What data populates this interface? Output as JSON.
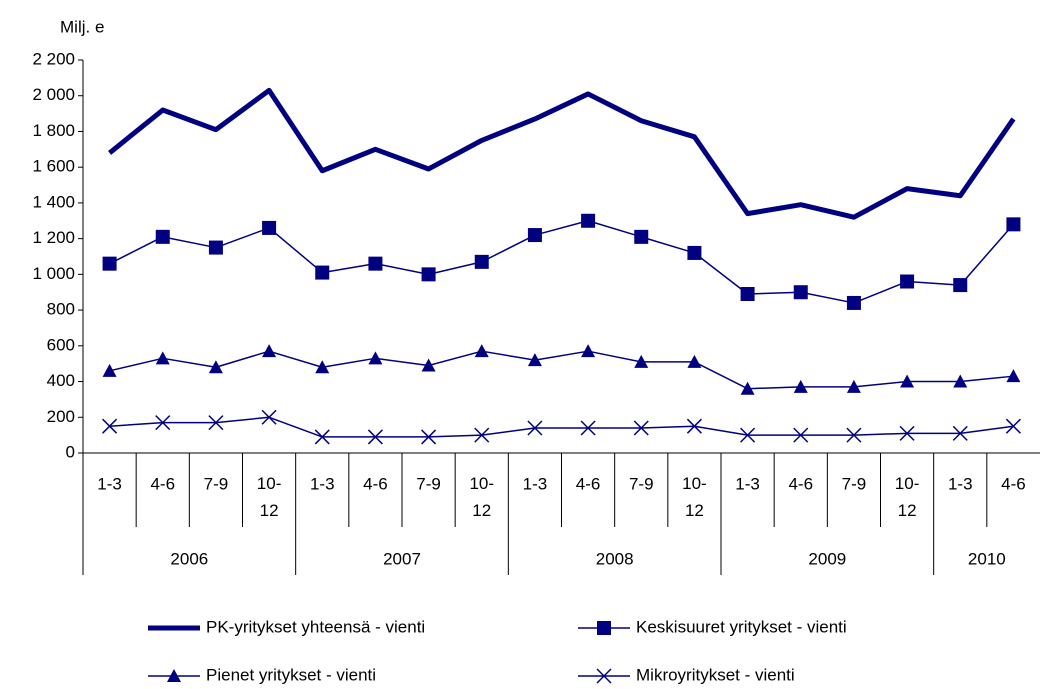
{
  "chart_data": {
    "type": "line",
    "ylabel": "Milj. e",
    "categories": [
      "1-3",
      "4-6",
      "7-9",
      "10-12",
      "1-3",
      "4-6",
      "7-9",
      "10-12",
      "1-3",
      "4-6",
      "7-9",
      "10-12",
      "1-3",
      "4-6",
      "7-9",
      "10-12",
      "1-3",
      "4-6"
    ],
    "groups": [
      {
        "label": "2006",
        "count": 4
      },
      {
        "label": "2007",
        "count": 4
      },
      {
        "label": "2008",
        "count": 4
      },
      {
        "label": "2009",
        "count": 4
      },
      {
        "label": "2010",
        "count": 2
      }
    ],
    "series": [
      {
        "name": "PK-yritykset yhteensä - vienti",
        "color": "#000080",
        "marker": "none",
        "width": 5,
        "values": [
          1680,
          1920,
          1810,
          2030,
          1580,
          1700,
          1590,
          1750,
          1870,
          2010,
          1860,
          1770,
          1340,
          1390,
          1320,
          1480,
          1440,
          1870
        ]
      },
      {
        "name": "Keskisuuret yritykset - vienti",
        "color": "#000080",
        "marker": "square",
        "width": 1.5,
        "values": [
          1060,
          1210,
          1150,
          1260,
          1010,
          1060,
          1000,
          1070,
          1220,
          1300,
          1210,
          1120,
          890,
          900,
          840,
          960,
          940,
          1280
        ]
      },
      {
        "name": "Pienet yritykset - vienti",
        "color": "#000080",
        "marker": "triangle",
        "width": 1.5,
        "values": [
          460,
          530,
          480,
          570,
          480,
          530,
          490,
          570,
          520,
          570,
          510,
          510,
          360,
          370,
          370,
          400,
          400,
          430
        ]
      },
      {
        "name": "Mikroyritykset - vienti",
        "color": "#000080",
        "marker": "x",
        "width": 1.5,
        "values": [
          150,
          170,
          170,
          200,
          90,
          90,
          90,
          100,
          140,
          140,
          140,
          150,
          100,
          100,
          100,
          110,
          110,
          150
        ]
      }
    ],
    "ylim": [
      0,
      2200
    ],
    "yticks": [
      0,
      200,
      400,
      600,
      800,
      {
        "value": 1000,
        "label": "1 000"
      },
      {
        "value": 1200,
        "label": "1 200"
      },
      {
        "value": 1400,
        "label": "1 400"
      },
      {
        "value": 1600,
        "label": "1 600"
      },
      {
        "value": 1800,
        "label": "1 800"
      },
      {
        "value": 2000,
        "label": "2 000"
      },
      {
        "value": 2200,
        "label": "2 200"
      }
    ]
  }
}
